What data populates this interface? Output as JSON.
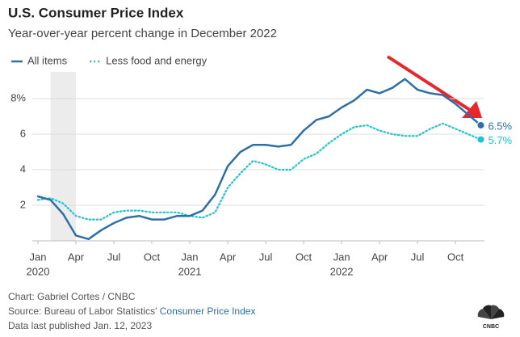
{
  "chart_data": {
    "type": "line",
    "title": "U.S. Consumer Price Index",
    "subtitle": "Year-over-year percent change in December 2022",
    "x": [
      "2020-01",
      "2020-02",
      "2020-03",
      "2020-04",
      "2020-05",
      "2020-06",
      "2020-07",
      "2020-08",
      "2020-09",
      "2020-10",
      "2020-11",
      "2020-12",
      "2021-01",
      "2021-02",
      "2021-03",
      "2021-04",
      "2021-05",
      "2021-06",
      "2021-07",
      "2021-08",
      "2021-09",
      "2021-10",
      "2021-11",
      "2021-12",
      "2022-01",
      "2022-02",
      "2022-03",
      "2022-04",
      "2022-05",
      "2022-06",
      "2022-07",
      "2022-08",
      "2022-09",
      "2022-10",
      "2022-11",
      "2022-12"
    ],
    "series": [
      {
        "name": "All items",
        "color": "#2f6fa7",
        "style": "solid",
        "values": [
          2.5,
          2.3,
          1.5,
          0.3,
          0.1,
          0.6,
          1.0,
          1.3,
          1.4,
          1.2,
          1.2,
          1.4,
          1.4,
          1.7,
          2.6,
          4.2,
          5.0,
          5.4,
          5.4,
          5.3,
          5.4,
          6.2,
          6.8,
          7.0,
          7.5,
          7.9,
          8.5,
          8.3,
          8.6,
          9.1,
          8.5,
          8.3,
          8.2,
          7.7,
          7.1,
          6.5
        ],
        "value_labels": [
          null,
          null,
          null,
          null,
          null,
          null,
          null,
          null,
          null,
          null,
          null,
          null,
          null,
          null,
          null,
          null,
          null,
          null,
          null,
          null,
          null,
          null,
          null,
          null,
          null,
          null,
          null,
          null,
          null,
          null,
          null,
          null,
          null,
          null,
          null,
          "6.5%"
        ]
      },
      {
        "name": "Less food and energy",
        "color": "#1fc3d6",
        "style": "dotted",
        "values": [
          2.3,
          2.4,
          2.1,
          1.4,
          1.2,
          1.2,
          1.6,
          1.7,
          1.7,
          1.6,
          1.6,
          1.6,
          1.4,
          1.3,
          1.6,
          3.0,
          3.8,
          4.5,
          4.3,
          4.0,
          4.0,
          4.6,
          4.9,
          5.5,
          6.0,
          6.4,
          6.5,
          6.2,
          6.0,
          5.9,
          5.9,
          6.3,
          6.6,
          6.3,
          6.0,
          5.7
        ],
        "value_labels": [
          null,
          null,
          null,
          null,
          null,
          null,
          null,
          null,
          null,
          null,
          null,
          null,
          null,
          null,
          null,
          null,
          null,
          null,
          null,
          null,
          null,
          null,
          null,
          null,
          null,
          null,
          null,
          null,
          null,
          null,
          null,
          null,
          null,
          null,
          null,
          "5.7%"
        ]
      }
    ],
    "shaded_range": [
      "2020-02",
      "2020-04"
    ],
    "xticks": [
      {
        "value": "2020-01",
        "label": "Jan"
      },
      {
        "value": "2020-04",
        "label": "Apr"
      },
      {
        "value": "2020-07",
        "label": "Jul"
      },
      {
        "value": "2020-10",
        "label": "Oct"
      },
      {
        "value": "2021-01",
        "label": "Jan"
      },
      {
        "value": "2021-04",
        "label": "Apr"
      },
      {
        "value": "2021-07",
        "label": "Jul"
      },
      {
        "value": "2021-10",
        "label": "Oct"
      },
      {
        "value": "2022-01",
        "label": "Jan"
      },
      {
        "value": "2022-04",
        "label": "Apr"
      },
      {
        "value": "2022-07",
        "label": "Jul"
      },
      {
        "value": "2022-10",
        "label": "Oct"
      }
    ],
    "xtick_years": [
      {
        "value": "2020-01",
        "label": "2020"
      },
      {
        "value": "2021-01",
        "label": "2021"
      },
      {
        "value": "2022-01",
        "label": "2022"
      }
    ],
    "ylim": [
      0,
      9.5
    ],
    "yticks": [
      2,
      4,
      6,
      {
        "value": 8,
        "label": "8%"
      }
    ],
    "grid": true,
    "credit": "Chart: Gabriel Cortes / CNBC",
    "source": "Source: Bureau of Labor Statistics'",
    "source_link": "Consumer Price Index",
    "published": "Data last published Jan. 12, 2023",
    "logo": "CNBC"
  }
}
